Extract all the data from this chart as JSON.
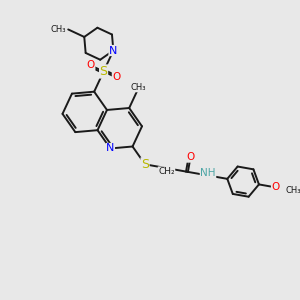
{
  "bg_color": "#e8e8e8",
  "bond_color": "#1a1a1a",
  "bond_width": 1.4,
  "atom_colors": {
    "N": "#0000ff",
    "O": "#ff0000",
    "S": "#b8b800",
    "H": "#4da6a6",
    "C": "#1a1a1a"
  },
  "font_size": 7.5,
  "figsize": [
    3.0,
    3.0
  ],
  "dpi": 100,
  "xlim": [
    0,
    10
  ],
  "ylim": [
    0,
    10
  ]
}
